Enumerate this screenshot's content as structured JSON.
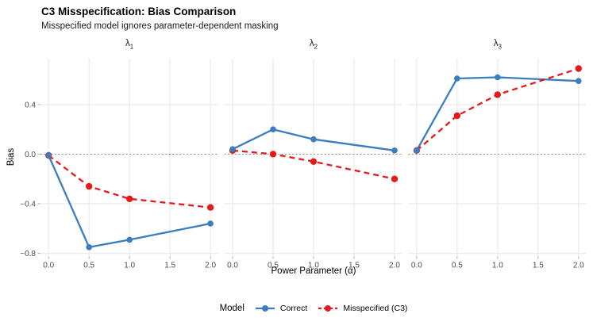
{
  "chart_data": {
    "type": "line",
    "title": "C3 Misspecification: Bias Comparison",
    "subtitle": "Misspecified model ignores parameter-dependent masking",
    "xlabel": "Power Parameter (α)",
    "ylabel": "Bias",
    "x": [
      0,
      0.5,
      1.0,
      2.0
    ],
    "x_ticks": [
      0,
      0.5,
      1.0,
      1.5,
      2.0
    ],
    "x_tick_labels": [
      "0.0",
      "0.5",
      "1.0",
      "1.5",
      "2.0"
    ],
    "y_ticks": [
      0.4,
      0.0,
      -0.4,
      -0.8
    ],
    "y_tick_labels": [
      "0.4",
      "0.0",
      "−0.4",
      "−0.8"
    ],
    "xlim": [
      -0.1,
      2.1
    ],
    "ylim": [
      -0.825,
      0.77
    ],
    "zero_line": 0,
    "grid": true,
    "grid_color": "#EBEBEB",
    "background_color": "#FFFFFF",
    "legend_position": "bottom",
    "facets": [
      {
        "label": {
          "base": "λ",
          "sub": "1"
        },
        "series": [
          {
            "name": "Correct",
            "values": [
              -0.01,
              -0.75,
              -0.69,
              -0.56
            ]
          },
          {
            "name": "Misspecified (C3)",
            "values": [
              -0.01,
              -0.26,
              -0.36,
              -0.43
            ]
          }
        ]
      },
      {
        "label": {
          "base": "λ",
          "sub": "2"
        },
        "series": [
          {
            "name": "Correct",
            "values": [
              0.04,
              0.2,
              0.12,
              0.03
            ]
          },
          {
            "name": "Misspecified (C3)",
            "values": [
              0.03,
              0.0,
              -0.06,
              -0.2
            ]
          }
        ]
      },
      {
        "label": {
          "base": "λ",
          "sub": "3"
        },
        "series": [
          {
            "name": "Correct",
            "values": [
              0.03,
              0.61,
              0.62,
              0.59
            ]
          },
          {
            "name": "Misspecified (C3)",
            "values": [
              0.03,
              0.31,
              0.48,
              0.69
            ]
          }
        ]
      }
    ],
    "series_styles": [
      {
        "name": "Correct",
        "slug": "correct",
        "color": "#3C7DBE",
        "dash": "solid"
      },
      {
        "name": "Misspecified (C3)",
        "slug": "misspecified-c3",
        "color": "#E41A1C",
        "dash": "dashed"
      }
    ],
    "legend": {
      "title": "Model",
      "entries": [
        "Correct",
        "Misspecified (C3)"
      ]
    }
  }
}
